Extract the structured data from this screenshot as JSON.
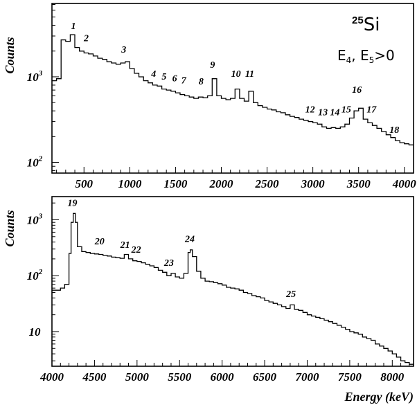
{
  "chart_data": [
    {
      "type": "histogram",
      "ylabel": "Counts",
      "yscale": "log",
      "xlim": [
        150,
        4100
      ],
      "ylim": [
        75,
        7200
      ],
      "x_ticks": [
        500,
        1000,
        1500,
        2000,
        2500,
        3000,
        3500,
        4000
      ],
      "y_ticks": [
        {
          "value": 100,
          "base": "10",
          "exp": "2"
        },
        {
          "value": 1000,
          "base": "10",
          "exp": "3"
        }
      ],
      "nucleus": {
        "mass": "25",
        "symbol": "Si"
      },
      "condition": {
        "e4": "E",
        "sub4": "4",
        "sep": ",",
        "e5": " E",
        "sub5": "5",
        "rel": ">0"
      },
      "series": [
        {
          "x": [
            150,
            200,
            250,
            300,
            350,
            400,
            450,
            500,
            550,
            600,
            650,
            700,
            750,
            800,
            850,
            900,
            950,
            1000,
            1050,
            1100,
            1150,
            1200,
            1250,
            1300,
            1350,
            1400,
            1450,
            1500,
            1550,
            1600,
            1650,
            1700,
            1750,
            1800,
            1850,
            1900,
            1950,
            2000,
            2050,
            2100,
            2150,
            2200,
            2250,
            2300,
            2350,
            2400,
            2450,
            2500,
            2550,
            2600,
            2650,
            2700,
            2750,
            2800,
            2850,
            2900,
            2950,
            3000,
            3050,
            3100,
            3150,
            3200,
            3250,
            3300,
            3350,
            3400,
            3450,
            3500,
            3550,
            3600,
            3650,
            3700,
            3750,
            3800,
            3850,
            3900,
            3950,
            4000,
            4050,
            4100
          ],
          "y": [
            900,
            950,
            2700,
            2600,
            3100,
            2200,
            2000,
            1900,
            1850,
            1750,
            1650,
            1600,
            1500,
            1450,
            1400,
            1450,
            1500,
            1250,
            1100,
            1000,
            900,
            850,
            800,
            780,
            720,
            700,
            680,
            650,
            620,
            600,
            580,
            560,
            580,
            570,
            600,
            950,
            600,
            560,
            540,
            560,
            720,
            560,
            520,
            680,
            500,
            460,
            440,
            420,
            410,
            390,
            380,
            360,
            345,
            335,
            320,
            310,
            300,
            290,
            280,
            260,
            250,
            255,
            250,
            260,
            280,
            330,
            400,
            430,
            320,
            290,
            270,
            250,
            230,
            210,
            195,
            180,
            170,
            165,
            160,
            160
          ]
        }
      ],
      "peaks": [
        {
          "label": "1",
          "x": 385,
          "y": 3100
        },
        {
          "label": "2",
          "x": 525,
          "y": 2250
        },
        {
          "label": "3",
          "x": 935,
          "y": 1650
        },
        {
          "label": "4",
          "x": 1260,
          "y": 860
        },
        {
          "label": "5",
          "x": 1375,
          "y": 800
        },
        {
          "label": "6",
          "x": 1490,
          "y": 760
        },
        {
          "label": "7",
          "x": 1590,
          "y": 720
        },
        {
          "label": "8",
          "x": 1780,
          "y": 700
        },
        {
          "label": "9",
          "x": 1905,
          "y": 1100
        },
        {
          "label": "10",
          "x": 2160,
          "y": 860
        },
        {
          "label": "11",
          "x": 2310,
          "y": 860
        },
        {
          "label": "12",
          "x": 2970,
          "y": 330
        },
        {
          "label": "13",
          "x": 3110,
          "y": 305
        },
        {
          "label": "14",
          "x": 3240,
          "y": 305
        },
        {
          "label": "15",
          "x": 3365,
          "y": 330
        },
        {
          "label": "16",
          "x": 3480,
          "y": 560
        },
        {
          "label": "17",
          "x": 3640,
          "y": 330
        },
        {
          "label": "18",
          "x": 3890,
          "y": 190
        }
      ]
    },
    {
      "type": "histogram",
      "ylabel": "Counts",
      "xlabel": "Energy  (keV)",
      "yscale": "log",
      "xlim": [
        4000,
        8250
      ],
      "ylim": [
        2.4,
        2600
      ],
      "x_ticks": [
        4000,
        4500,
        5000,
        5500,
        6000,
        6500,
        7000,
        7500,
        8000
      ],
      "y_ticks": [
        {
          "value": 10,
          "base": "10",
          "exp": ""
        },
        {
          "value": 100,
          "base": "10",
          "exp": "2"
        },
        {
          "value": 1000,
          "base": "10",
          "exp": "3"
        }
      ],
      "series": [
        {
          "x": [
            4000,
            4100,
            4150,
            4200,
            4225,
            4250,
            4275,
            4300,
            4350,
            4400,
            4450,
            4500,
            4550,
            4600,
            4650,
            4700,
            4750,
            4800,
            4850,
            4900,
            4950,
            5000,
            5050,
            5100,
            5150,
            5200,
            5250,
            5300,
            5350,
            5400,
            5450,
            5500,
            5550,
            5600,
            5625,
            5650,
            5700,
            5750,
            5800,
            5850,
            5900,
            5950,
            6000,
            6050,
            6100,
            6150,
            6200,
            6250,
            6300,
            6350,
            6400,
            6450,
            6500,
            6550,
            6600,
            6650,
            6700,
            6750,
            6800,
            6850,
            6900,
            6950,
            7000,
            7050,
            7100,
            7150,
            7200,
            7250,
            7300,
            7350,
            7400,
            7450,
            7500,
            7550,
            7600,
            7650,
            7700,
            7750,
            7800,
            7850,
            7900,
            7950,
            8000,
            8050,
            8100,
            8150,
            8200,
            8250
          ],
          "y": [
            55,
            60,
            70,
            250,
            900,
            1300,
            900,
            330,
            270,
            260,
            250,
            245,
            240,
            230,
            225,
            215,
            210,
            205,
            240,
            200,
            185,
            180,
            170,
            160,
            150,
            140,
            125,
            115,
            100,
            110,
            95,
            90,
            110,
            260,
            290,
            220,
            120,
            90,
            80,
            78,
            75,
            72,
            68,
            62,
            60,
            58,
            55,
            50,
            48,
            44,
            42,
            40,
            36,
            34,
            32,
            30,
            28,
            26,
            30,
            25,
            24,
            22,
            20,
            19,
            18,
            17,
            16,
            15,
            14,
            13,
            12,
            11,
            10,
            9.5,
            9,
            8,
            7.5,
            7,
            6,
            5.5,
            5,
            4.5,
            4,
            3.5,
            3,
            2.8,
            2.6,
            2.5
          ]
        }
      ],
      "peaks": [
        {
          "label": "19",
          "x": 4240,
          "y": 1400
        },
        {
          "label": "20",
          "x": 4560,
          "y": 290
        },
        {
          "label": "21",
          "x": 4860,
          "y": 250
        },
        {
          "label": "22",
          "x": 4990,
          "y": 205
        },
        {
          "label": "23",
          "x": 5375,
          "y": 120
        },
        {
          "label": "24",
          "x": 5620,
          "y": 320
        },
        {
          "label": "25",
          "x": 6810,
          "y": 33
        }
      ]
    }
  ]
}
